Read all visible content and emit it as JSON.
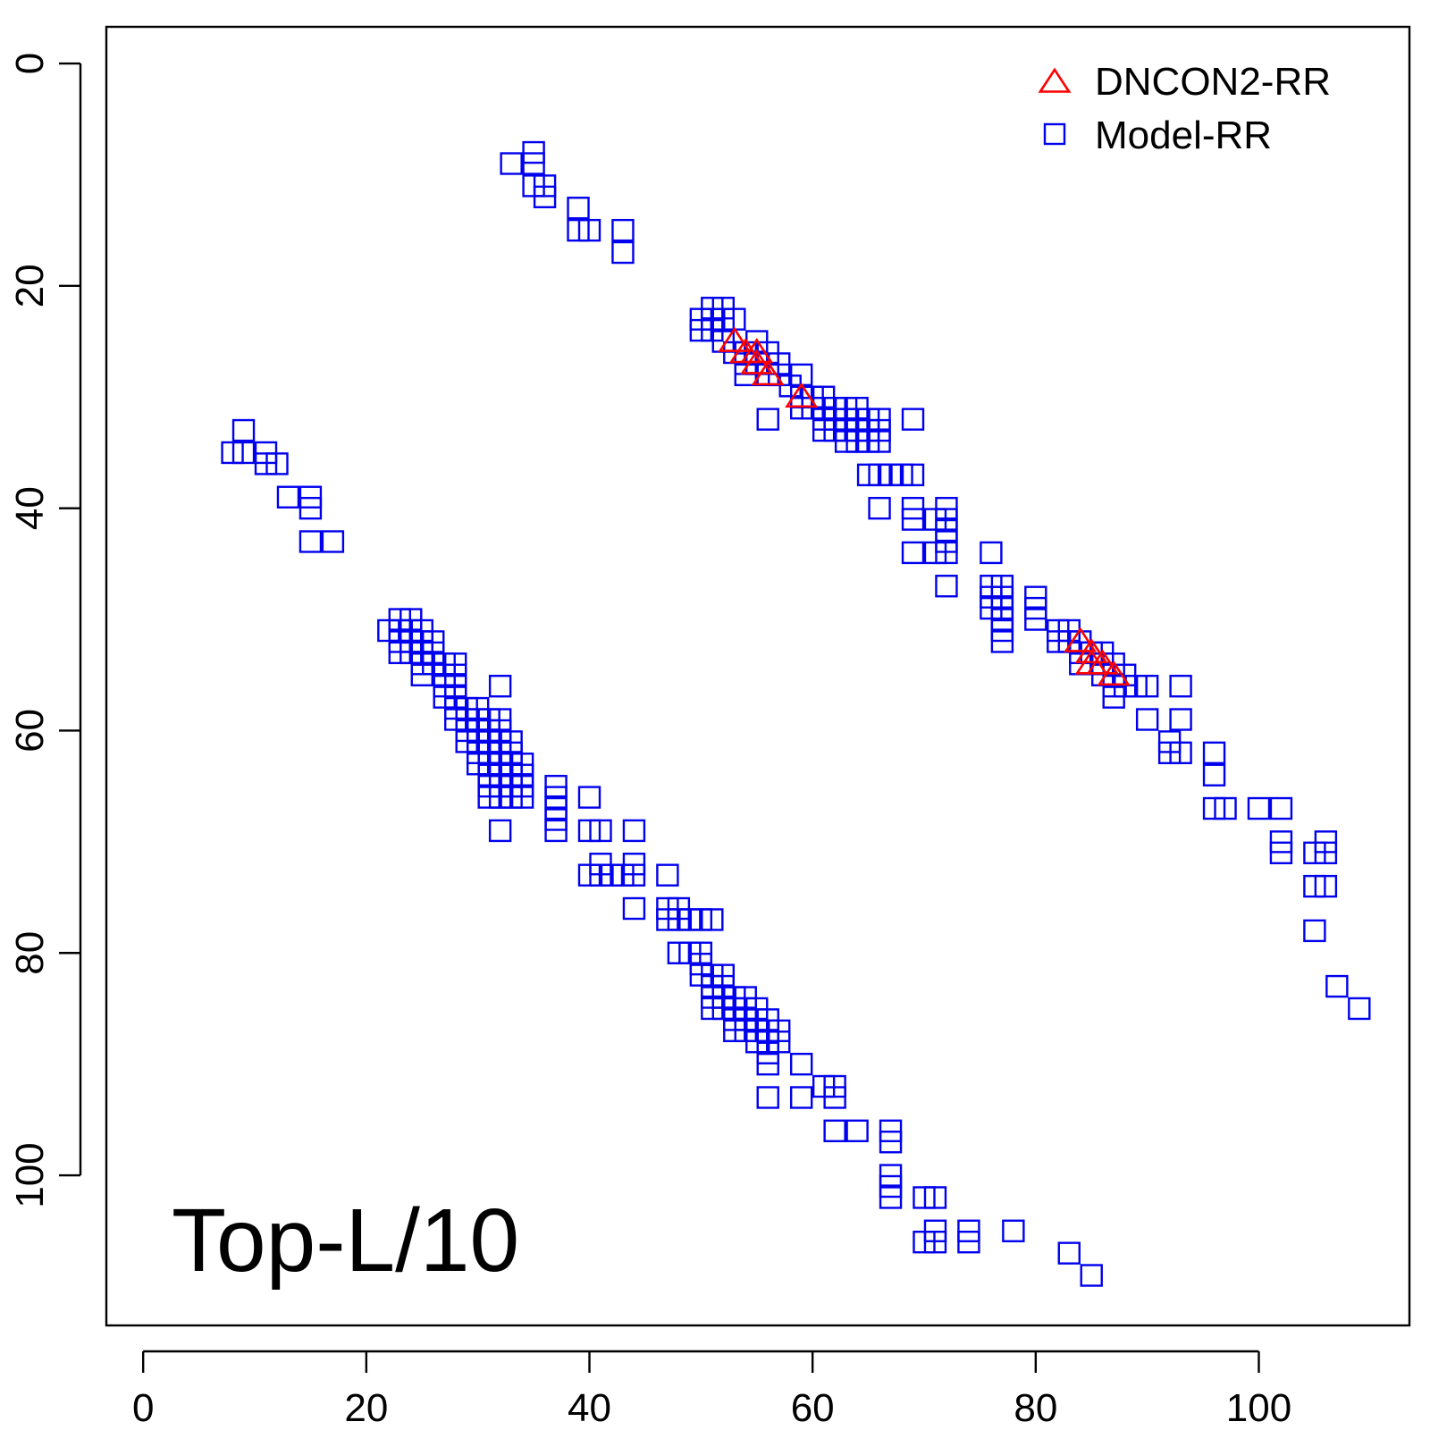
{
  "chart_data": {
    "type": "scatter",
    "title": "",
    "xlabel": "",
    "ylabel": "",
    "xlim": [
      -3.3,
      113.5
    ],
    "ylim": [
      -3.3,
      113.5
    ],
    "y_reversed": true,
    "x_ticks": [
      "0",
      "20",
      "40",
      "60",
      "80",
      "100"
    ],
    "y_ticks": [
      "0",
      "20",
      "40",
      "60",
      "80",
      "100"
    ],
    "grid": false,
    "legend_position": "top-right",
    "annotation": "Top-L/10",
    "colors": {
      "DNCON2-RR": "#ff0000",
      "Model-RR": "#0000ee",
      "axis": "#000000"
    },
    "series": [
      {
        "name": "DNCON2-RR",
        "marker": "triangle",
        "points": [
          [
            53,
            25
          ],
          [
            54,
            26
          ],
          [
            55,
            26
          ],
          [
            55,
            27
          ],
          [
            56,
            28
          ],
          [
            59,
            30
          ],
          [
            84,
            52
          ],
          [
            85,
            53
          ],
          [
            85,
            54
          ],
          [
            86,
            54
          ],
          [
            87,
            55
          ]
        ]
      },
      {
        "name": "Model-RR",
        "marker": "square",
        "points": [
          [
            33,
            9
          ],
          [
            35,
            8
          ],
          [
            35,
            9
          ],
          [
            35,
            11
          ],
          [
            36,
            11
          ],
          [
            36,
            12
          ],
          [
            39,
            13
          ],
          [
            39,
            15
          ],
          [
            40,
            15
          ],
          [
            43,
            15
          ],
          [
            43,
            17
          ],
          [
            8,
            35
          ],
          [
            9,
            33
          ],
          [
            9,
            35
          ],
          [
            11,
            35
          ],
          [
            11,
            36
          ],
          [
            12,
            36
          ],
          [
            13,
            39
          ],
          [
            15,
            39
          ],
          [
            15,
            40
          ],
          [
            15,
            43
          ],
          [
            17,
            43
          ],
          [
            51,
            22
          ],
          [
            52,
            22
          ],
          [
            50,
            23
          ],
          [
            51,
            23
          ],
          [
            52,
            23
          ],
          [
            53,
            23
          ],
          [
            50,
            24
          ],
          [
            51,
            24
          ],
          [
            52,
            25
          ],
          [
            53,
            26
          ],
          [
            54,
            26
          ],
          [
            54,
            27
          ],
          [
            54,
            28
          ],
          [
            55,
            25
          ],
          [
            55,
            27
          ],
          [
            56,
            26
          ],
          [
            56,
            28
          ],
          [
            57,
            27
          ],
          [
            57,
            28
          ],
          [
            56,
            32
          ],
          [
            58,
            29
          ],
          [
            59,
            28
          ],
          [
            59,
            30
          ],
          [
            59,
            31
          ],
          [
            60,
            30
          ],
          [
            60,
            31
          ],
          [
            61,
            30
          ],
          [
            61,
            32
          ],
          [
            61,
            33
          ],
          [
            62,
            31
          ],
          [
            62,
            32
          ],
          [
            62,
            33
          ],
          [
            63,
            31
          ],
          [
            63,
            32
          ],
          [
            63,
            33
          ],
          [
            63,
            34
          ],
          [
            64,
            31
          ],
          [
            64,
            32
          ],
          [
            64,
            33
          ],
          [
            64,
            34
          ],
          [
            65,
            32
          ],
          [
            65,
            33
          ],
          [
            65,
            34
          ],
          [
            66,
            32
          ],
          [
            66,
            33
          ],
          [
            66,
            34
          ],
          [
            69,
            32
          ],
          [
            65,
            37
          ],
          [
            66,
            37
          ],
          [
            67,
            37
          ],
          [
            66,
            40
          ],
          [
            68,
            37
          ],
          [
            69,
            37
          ],
          [
            69,
            40
          ],
          [
            69,
            41
          ],
          [
            69,
            44
          ],
          [
            71,
            41
          ],
          [
            71,
            44
          ],
          [
            72,
            40
          ],
          [
            72,
            41
          ],
          [
            72,
            42
          ],
          [
            72,
            43
          ],
          [
            72,
            44
          ],
          [
            72,
            47
          ],
          [
            76,
            44
          ],
          [
            76,
            47
          ],
          [
            77,
            47
          ],
          [
            76,
            48
          ],
          [
            77,
            48
          ],
          [
            76,
            49
          ],
          [
            77,
            49
          ],
          [
            77,
            50
          ],
          [
            77,
            51
          ],
          [
            77,
            52
          ],
          [
            80,
            48
          ],
          [
            80,
            49
          ],
          [
            80,
            50
          ],
          [
            82,
            51
          ],
          [
            83,
            51
          ],
          [
            82,
            52
          ],
          [
            83,
            52
          ],
          [
            84,
            52
          ],
          [
            84,
            53
          ],
          [
            84,
            54
          ],
          [
            85,
            53
          ],
          [
            86,
            53
          ],
          [
            86,
            54
          ],
          [
            86,
            55
          ],
          [
            87,
            54
          ],
          [
            87,
            56
          ],
          [
            87,
            57
          ],
          [
            88,
            55
          ],
          [
            88,
            56
          ],
          [
            89,
            56
          ],
          [
            90,
            56
          ],
          [
            90,
            59
          ],
          [
            93,
            56
          ],
          [
            93,
            59
          ],
          [
            92,
            61
          ],
          [
            92,
            62
          ],
          [
            93,
            62
          ],
          [
            96,
            62
          ],
          [
            96,
            64
          ],
          [
            96,
            67
          ],
          [
            97,
            67
          ],
          [
            100,
            67
          ],
          [
            102,
            67
          ],
          [
            102,
            70
          ],
          [
            102,
            71
          ],
          [
            105,
            71
          ],
          [
            105,
            74
          ],
          [
            106,
            70
          ],
          [
            106,
            71
          ],
          [
            106,
            74
          ],
          [
            105,
            78
          ],
          [
            107,
            83
          ],
          [
            109,
            85
          ],
          [
            22,
            51
          ],
          [
            23,
            50
          ],
          [
            24,
            50
          ],
          [
            23,
            51
          ],
          [
            24,
            51
          ],
          [
            25,
            51
          ],
          [
            23,
            52
          ],
          [
            24,
            52
          ],
          [
            25,
            52
          ],
          [
            26,
            52
          ],
          [
            23,
            53
          ],
          [
            24,
            53
          ],
          [
            25,
            53
          ],
          [
            26,
            53
          ],
          [
            25,
            54
          ],
          [
            26,
            54
          ],
          [
            27,
            54
          ],
          [
            28,
            54
          ],
          [
            25,
            55
          ],
          [
            27,
            55
          ],
          [
            28,
            55
          ],
          [
            27,
            56
          ],
          [
            28,
            56
          ],
          [
            27,
            57
          ],
          [
            28,
            57
          ],
          [
            28,
            58
          ],
          [
            29,
            58
          ],
          [
            30,
            58
          ],
          [
            28,
            59
          ],
          [
            29,
            59
          ],
          [
            30,
            59
          ],
          [
            31,
            59
          ],
          [
            32,
            59
          ],
          [
            29,
            60
          ],
          [
            30,
            60
          ],
          [
            31,
            60
          ],
          [
            32,
            60
          ],
          [
            29,
            61
          ],
          [
            30,
            61
          ],
          [
            31,
            61
          ],
          [
            32,
            61
          ],
          [
            33,
            61
          ],
          [
            30,
            62
          ],
          [
            31,
            62
          ],
          [
            32,
            62
          ],
          [
            33,
            62
          ],
          [
            30,
            63
          ],
          [
            31,
            63
          ],
          [
            32,
            63
          ],
          [
            33,
            63
          ],
          [
            34,
            63
          ],
          [
            31,
            64
          ],
          [
            32,
            64
          ],
          [
            33,
            64
          ],
          [
            34,
            64
          ],
          [
            31,
            65
          ],
          [
            32,
            65
          ],
          [
            33,
            65
          ],
          [
            34,
            65
          ],
          [
            31,
            66
          ],
          [
            32,
            66
          ],
          [
            33,
            66
          ],
          [
            34,
            66
          ],
          [
            32,
            56
          ],
          [
            32,
            69
          ],
          [
            37,
            65
          ],
          [
            37,
            66
          ],
          [
            37,
            67
          ],
          [
            37,
            68
          ],
          [
            37,
            69
          ],
          [
            40,
            66
          ],
          [
            40,
            69
          ],
          [
            41,
            69
          ],
          [
            44,
            69
          ],
          [
            40,
            73
          ],
          [
            41,
            72
          ],
          [
            41,
            73
          ],
          [
            42,
            73
          ],
          [
            43,
            73
          ],
          [
            44,
            72
          ],
          [
            44,
            73
          ],
          [
            44,
            76
          ],
          [
            47,
            73
          ],
          [
            47,
            76
          ],
          [
            48,
            76
          ],
          [
            47,
            77
          ],
          [
            48,
            77
          ],
          [
            49,
            77
          ],
          [
            50,
            77
          ],
          [
            51,
            77
          ],
          [
            48,
            80
          ],
          [
            49,
            80
          ],
          [
            50,
            80
          ],
          [
            50,
            81
          ],
          [
            50,
            82
          ],
          [
            51,
            82
          ],
          [
            52,
            82
          ],
          [
            51,
            83
          ],
          [
            52,
            83
          ],
          [
            51,
            84
          ],
          [
            52,
            84
          ],
          [
            53,
            84
          ],
          [
            54,
            84
          ],
          [
            51,
            85
          ],
          [
            52,
            85
          ],
          [
            53,
            85
          ],
          [
            54,
            85
          ],
          [
            55,
            85
          ],
          [
            53,
            86
          ],
          [
            54,
            86
          ],
          [
            55,
            86
          ],
          [
            53,
            87
          ],
          [
            54,
            87
          ],
          [
            55,
            87
          ],
          [
            56,
            86
          ],
          [
            56,
            87
          ],
          [
            57,
            87
          ],
          [
            55,
            88
          ],
          [
            56,
            88
          ],
          [
            57,
            88
          ],
          [
            56,
            89
          ],
          [
            56,
            90
          ],
          [
            59,
            90
          ],
          [
            56,
            93
          ],
          [
            59,
            93
          ],
          [
            61,
            92
          ],
          [
            62,
            92
          ],
          [
            62,
            93
          ],
          [
            62,
            96
          ],
          [
            64,
            96
          ],
          [
            67,
            96
          ],
          [
            67,
            97
          ],
          [
            67,
            100
          ],
          [
            67,
            101
          ],
          [
            67,
            102
          ],
          [
            70,
            102
          ],
          [
            71,
            102
          ],
          [
            70,
            106
          ],
          [
            71,
            105
          ],
          [
            71,
            106
          ],
          [
            74,
            105
          ],
          [
            74,
            106
          ],
          [
            78,
            105
          ],
          [
            83,
            107
          ],
          [
            85,
            109
          ]
        ]
      }
    ]
  }
}
